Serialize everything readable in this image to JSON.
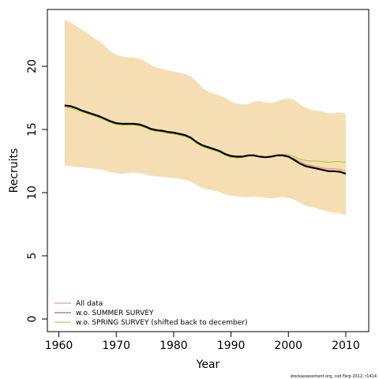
{
  "chart_data": {
    "type": "line",
    "xlabel": "Year",
    "ylabel": "Recruits",
    "xlim": [
      1958,
      2014
    ],
    "ylim": [
      -1,
      24.5
    ],
    "x_ticks": [
      "1960",
      "1970",
      "1980",
      "1990",
      "2000",
      "2010"
    ],
    "y_ticks": [
      "0",
      "5",
      "10",
      "15",
      "20"
    ],
    "x": [
      1961,
      1962,
      1963,
      1964,
      1965,
      1966,
      1967,
      1968,
      1969,
      1970,
      1971,
      1972,
      1973,
      1974,
      1975,
      1976,
      1977,
      1978,
      1979,
      1980,
      1981,
      1982,
      1983,
      1984,
      1985,
      1986,
      1987,
      1988,
      1989,
      1990,
      1991,
      1992,
      1993,
      1994,
      1995,
      1996,
      1997,
      1998,
      1999,
      2000,
      2001,
      2002,
      2003,
      2004,
      2005,
      2006,
      2007,
      2008,
      2009,
      2010
    ],
    "band": {
      "color": "#f5deb3",
      "upper": [
        23.7,
        23.5,
        23.2,
        22.9,
        22.6,
        22.3,
        22.0,
        21.6,
        21.2,
        20.9,
        20.8,
        20.7,
        20.7,
        20.6,
        20.4,
        20.1,
        19.9,
        19.8,
        19.7,
        19.6,
        19.5,
        19.4,
        19.2,
        18.8,
        18.3,
        18.0,
        17.8,
        17.7,
        17.5,
        17.2,
        17.05,
        17.0,
        17.0,
        17.2,
        17.25,
        17.15,
        17.1,
        17.2,
        17.4,
        17.45,
        17.35,
        17.0,
        16.7,
        16.55,
        16.5,
        16.4,
        16.3,
        16.3,
        16.35,
        16.25
      ],
      "lower": [
        12.1,
        12.1,
        12.05,
        12.0,
        11.95,
        11.9,
        11.85,
        11.75,
        11.65,
        11.55,
        11.5,
        11.55,
        11.6,
        11.55,
        11.45,
        11.35,
        11.3,
        11.25,
        11.2,
        11.15,
        11.1,
        11.0,
        10.9,
        10.6,
        10.35,
        10.25,
        10.15,
        10.05,
        9.85,
        9.75,
        9.7,
        9.65,
        9.65,
        9.7,
        9.65,
        9.6,
        9.55,
        9.6,
        9.65,
        9.6,
        9.45,
        9.2,
        8.95,
        8.85,
        8.75,
        8.6,
        8.5,
        8.4,
        8.35,
        8.2
      ]
    },
    "series": [
      {
        "color": "#000000",
        "values": [
          16.9,
          16.85,
          16.7,
          16.5,
          16.35,
          16.2,
          16.05,
          15.85,
          15.65,
          15.5,
          15.45,
          15.45,
          15.45,
          15.4,
          15.25,
          15.05,
          14.95,
          14.9,
          14.8,
          14.75,
          14.65,
          14.55,
          14.35,
          14.0,
          13.75,
          13.6,
          13.45,
          13.3,
          13.05,
          12.9,
          12.85,
          12.85,
          12.95,
          12.95,
          12.85,
          12.8,
          12.85,
          12.95,
          12.95,
          12.85,
          12.6,
          12.3,
          12.1,
          12.0,
          11.9,
          11.8,
          11.7,
          11.7,
          11.65,
          11.5
        ]
      },
      {
        "name": "All data",
        "color": "#f08080",
        "values": [
          16.95,
          16.9,
          16.75,
          16.55,
          16.4,
          16.25,
          16.1,
          15.9,
          15.7,
          15.55,
          15.5,
          15.5,
          15.5,
          15.45,
          15.3,
          15.1,
          15.0,
          14.95,
          14.85,
          14.8,
          14.7,
          14.6,
          14.4,
          14.05,
          13.8,
          13.65,
          13.5,
          13.35,
          13.1,
          12.95,
          12.9,
          12.9,
          13.0,
          13.0,
          12.9,
          12.85,
          12.9,
          13.0,
          13.0,
          12.9,
          12.7,
          12.45,
          12.25,
          12.15,
          12.05,
          11.95,
          11.9,
          11.9,
          11.85,
          11.7
        ]
      },
      {
        "name": "w.o. SUMMER SURVEY",
        "color": "#9b30c0",
        "values": [
          16.88,
          16.83,
          16.68,
          16.48,
          16.33,
          16.18,
          16.03,
          15.83,
          15.63,
          15.48,
          15.43,
          15.43,
          15.43,
          15.38,
          15.23,
          15.03,
          14.93,
          14.88,
          14.78,
          14.73,
          14.63,
          14.53,
          14.33,
          13.98,
          13.73,
          13.58,
          13.43,
          13.28,
          13.03,
          12.88,
          12.83,
          12.83,
          12.93,
          12.93,
          12.83,
          12.78,
          12.83,
          12.93,
          12.93,
          12.83,
          12.58,
          12.28,
          12.08,
          11.98,
          11.88,
          11.78,
          11.68,
          11.68,
          11.63,
          11.45
        ]
      },
      {
        "name": "w.o. SPRING SURVEY (shifted back to december)",
        "color": "#9acd32",
        "values": [
          16.75,
          16.7,
          16.55,
          16.4,
          16.25,
          16.1,
          15.95,
          15.75,
          15.55,
          15.4,
          15.35,
          15.35,
          15.35,
          15.3,
          15.15,
          14.95,
          14.85,
          14.8,
          14.7,
          14.65,
          14.55,
          14.45,
          14.25,
          13.9,
          13.65,
          13.5,
          13.35,
          13.2,
          12.95,
          12.8,
          12.75,
          12.8,
          12.9,
          12.9,
          12.85,
          12.85,
          12.9,
          13.0,
          13.05,
          13.0,
          12.85,
          12.65,
          12.55,
          12.5,
          12.5,
          12.45,
          12.4,
          12.45,
          12.45,
          12.4
        ]
      }
    ],
    "legend": {
      "placement": "bottom-left",
      "entries": [
        "All data",
        "w.o. SUMMER SURVEY",
        "w.o. SPRING SURVEY (shifted back to december)"
      ]
    },
    "footnote": "stockassessment.org, cod Farp 2012, r1414"
  }
}
